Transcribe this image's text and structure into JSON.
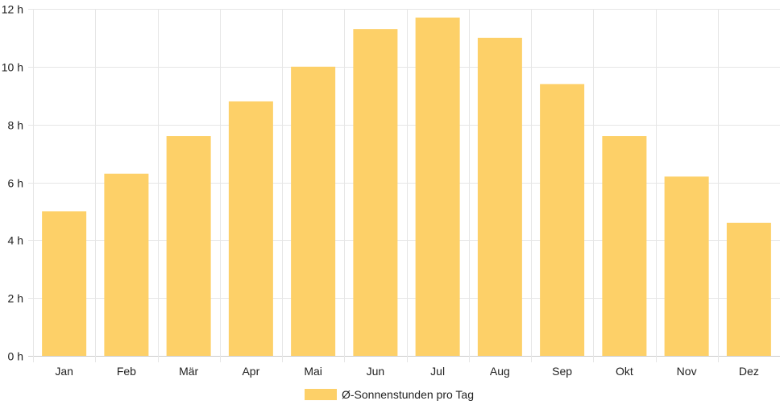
{
  "chart_data": {
    "type": "bar",
    "title": "",
    "xlabel": "",
    "ylabel": "",
    "categories": [
      "Jan",
      "Feb",
      "Mär",
      "Apr",
      "Mai",
      "Jun",
      "Jul",
      "Aug",
      "Sep",
      "Okt",
      "Nov",
      "Dez"
    ],
    "series": [
      {
        "name": "Ø-Sonnenstunden pro Tag",
        "values": [
          5.0,
          6.3,
          7.6,
          8.8,
          10.0,
          11.3,
          11.7,
          11.0,
          9.4,
          7.6,
          6.2,
          4.6
        ],
        "color": "#fdd068"
      }
    ],
    "ylim": [
      0,
      12
    ],
    "yticks": [
      "0 h",
      "2 h",
      "4 h",
      "6 h",
      "8 h",
      "10 h",
      "12 h"
    ],
    "grid": true,
    "legend": "bottom-center"
  }
}
